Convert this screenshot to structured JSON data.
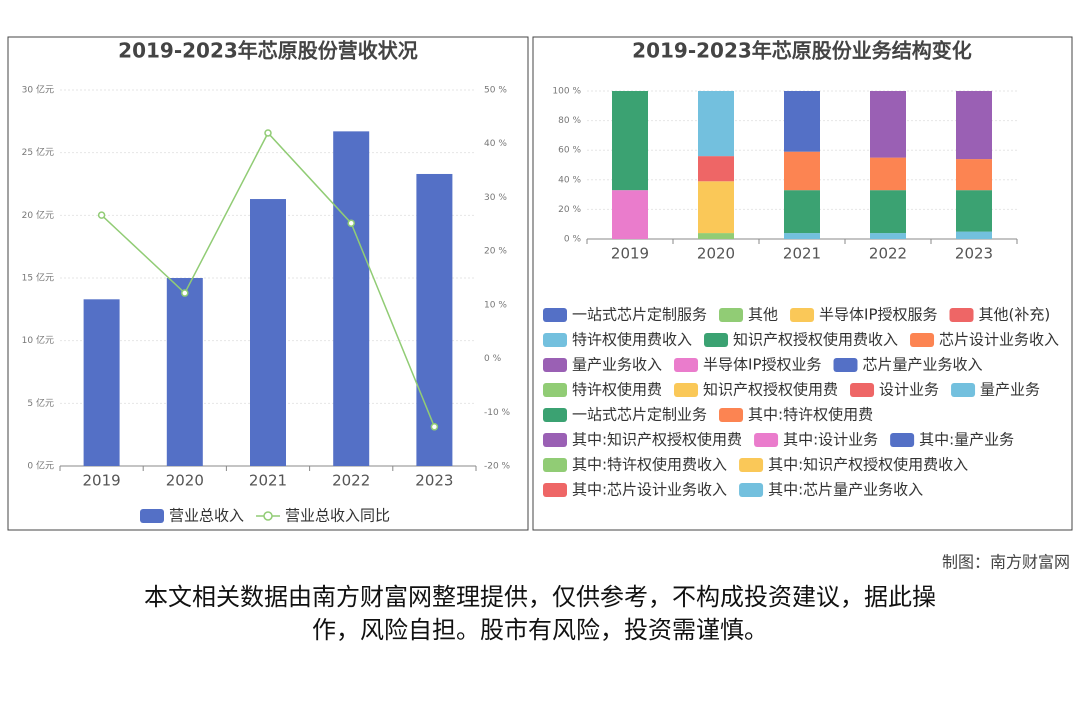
{
  "chart_data": [
    {
      "type": "bar",
      "title": "2019-2023年芯原股份营收状况",
      "categories": [
        "2019",
        "2020",
        "2021",
        "2022",
        "2023"
      ],
      "series": [
        {
          "name": "营业总收入",
          "color": "#5470c6",
          "values": [
            13.3,
            15.0,
            21.3,
            26.7,
            23.3
          ]
        },
        {
          "name": "营业总收入同比",
          "color": "#91cc75",
          "type": "line",
          "axis": "y2",
          "values": [
            26.7,
            12.2,
            42.0,
            25.2,
            -12.7
          ]
        }
      ],
      "ylim": [
        0,
        30
      ],
      "yticks": [
        {
          "value": 0,
          "label": "0 亿元"
        },
        {
          "value": 5,
          "label": "5 亿元"
        },
        {
          "value": 10,
          "label": "10 亿元"
        },
        {
          "value": 15,
          "label": "15 亿元"
        },
        {
          "value": 20,
          "label": "20 亿元"
        },
        {
          "value": 25,
          "label": "25 亿元"
        },
        {
          "value": 30,
          "label": "30 亿元"
        }
      ],
      "y2lim": [
        -20,
        50
      ],
      "y2ticks": [
        {
          "value": -20,
          "label": "-20 %"
        },
        {
          "value": -10,
          "label": "-10 %"
        },
        {
          "value": 0,
          "label": "0 %"
        },
        {
          "value": 10,
          "label": "10 %"
        },
        {
          "value": 20,
          "label": "20 %"
        },
        {
          "value": 30,
          "label": "30 %"
        },
        {
          "value": 40,
          "label": "40 %"
        },
        {
          "value": 50,
          "label": "50 %"
        }
      ],
      "grid": true
    },
    {
      "type": "stacked_bar",
      "title": "2019-2023年芯原股份业务结构变化",
      "categories": [
        "2019",
        "2020",
        "2021",
        "2022",
        "2023"
      ],
      "series": [
        {
          "name": "一站式芯片定制服务",
          "color": "#5470c6",
          "values": [
            null,
            null,
            null,
            null,
            null
          ]
        },
        {
          "name": "其他",
          "color": "#91cc75",
          "values": [
            null,
            null,
            null,
            null,
            null
          ]
        },
        {
          "name": "半导体IP授权服务",
          "color": "#fac858",
          "values": [
            null,
            null,
            null,
            null,
            null
          ]
        },
        {
          "name": "其他(补充)",
          "color": "#ee6666",
          "values": [
            null,
            null,
            null,
            null,
            null
          ]
        },
        {
          "name": "特许权使用费收入",
          "color": "#73c0de",
          "values": [
            null,
            null,
            4,
            4,
            5
          ]
        },
        {
          "name": "知识产权授权使用费收入",
          "color": "#3ba272",
          "values": [
            null,
            null,
            29,
            29,
            28
          ]
        },
        {
          "name": "芯片设计业务收入",
          "color": "#fc8452",
          "values": [
            null,
            null,
            26,
            22,
            21
          ]
        },
        {
          "name": "量产业务收入",
          "color": "#9a60b4",
          "values": [
            null,
            null,
            null,
            45,
            46
          ]
        },
        {
          "name": "半导体IP授权业务",
          "color": "#ea7ccc",
          "values": [
            33,
            null,
            null,
            null,
            null
          ]
        },
        {
          "name": "芯片量产业务收入",
          "color": "#5470c6",
          "values": [
            null,
            null,
            41,
            null,
            null
          ]
        },
        {
          "name": "特许权使用费",
          "color": "#91cc75",
          "values": [
            null,
            null,
            null,
            null,
            null
          ]
        },
        {
          "name": "知识产权授权使用费",
          "color": "#fac858",
          "values": [
            null,
            null,
            null,
            null,
            null
          ]
        },
        {
          "name": "设计业务",
          "color": "#ee6666",
          "values": [
            null,
            null,
            null,
            null,
            null
          ]
        },
        {
          "name": "量产业务",
          "color": "#73c0de",
          "values": [
            null,
            null,
            null,
            null,
            null
          ]
        },
        {
          "name": "一站式芯片定制业务",
          "color": "#3ba272",
          "values": [
            67,
            null,
            null,
            null,
            null
          ]
        },
        {
          "name": "其中:特许权使用费",
          "color": "#fc8452",
          "values": [
            null,
            null,
            null,
            null,
            null
          ]
        },
        {
          "name": "其中:知识产权授权使用费",
          "color": "#9a60b4",
          "values": [
            null,
            null,
            null,
            null,
            null
          ]
        },
        {
          "name": "其中:设计业务",
          "color": "#ea7ccc",
          "values": [
            null,
            null,
            null,
            null,
            null
          ]
        },
        {
          "name": "其中:量产业务",
          "color": "#5470c6",
          "values": [
            null,
            null,
            null,
            null,
            null
          ]
        },
        {
          "name": "其中:特许权使用费收入",
          "color": "#91cc75",
          "values": [
            null,
            4,
            null,
            null,
            null
          ]
        },
        {
          "name": "其中:知识产权授权使用费收入",
          "color": "#fac858",
          "values": [
            null,
            35,
            null,
            null,
            null
          ]
        },
        {
          "name": "其中:芯片设计业务收入",
          "color": "#ee6666",
          "values": [
            null,
            17,
            null,
            null,
            null
          ]
        },
        {
          "name": "其中:芯片量产业务收入",
          "color": "#73c0de",
          "values": [
            null,
            44,
            null,
            null,
            null
          ]
        }
      ],
      "ylim": [
        0,
        100
      ],
      "yticks": [
        {
          "value": 0,
          "label": "0 %"
        },
        {
          "value": 20,
          "label": "20 %"
        },
        {
          "value": 40,
          "label": "40 %"
        },
        {
          "value": 60,
          "label": "60 %"
        },
        {
          "value": 80,
          "label": "80 %"
        },
        {
          "value": 100,
          "label": "100 %"
        }
      ],
      "grid": true
    }
  ],
  "credit": "制图：南方财富网",
  "disclaimer": [
    "本文相关数据由南方财富网整理提供，仅供参考，不构成投资建议，据此操",
    "作，风险自担。股市有风险，投资需谨慎。"
  ]
}
